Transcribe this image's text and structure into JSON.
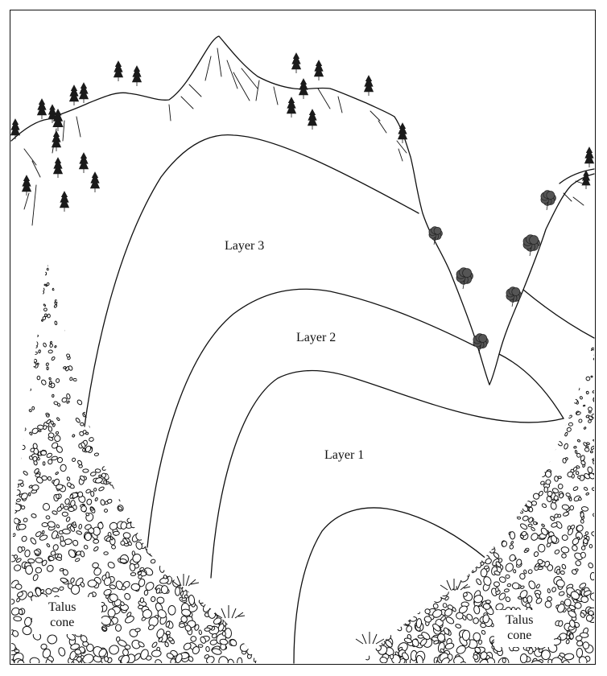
{
  "labels": {
    "layer3": "Layer 3",
    "layer2": "Layer 2",
    "layer1": "Layer 1",
    "talus_left": "Talus\ncone",
    "talus_right": "Talus\ncone"
  },
  "colors": {
    "ink": "#111111",
    "background": "#ffffff",
    "tree": "#1a1a1a",
    "shrub": "#555555"
  }
}
